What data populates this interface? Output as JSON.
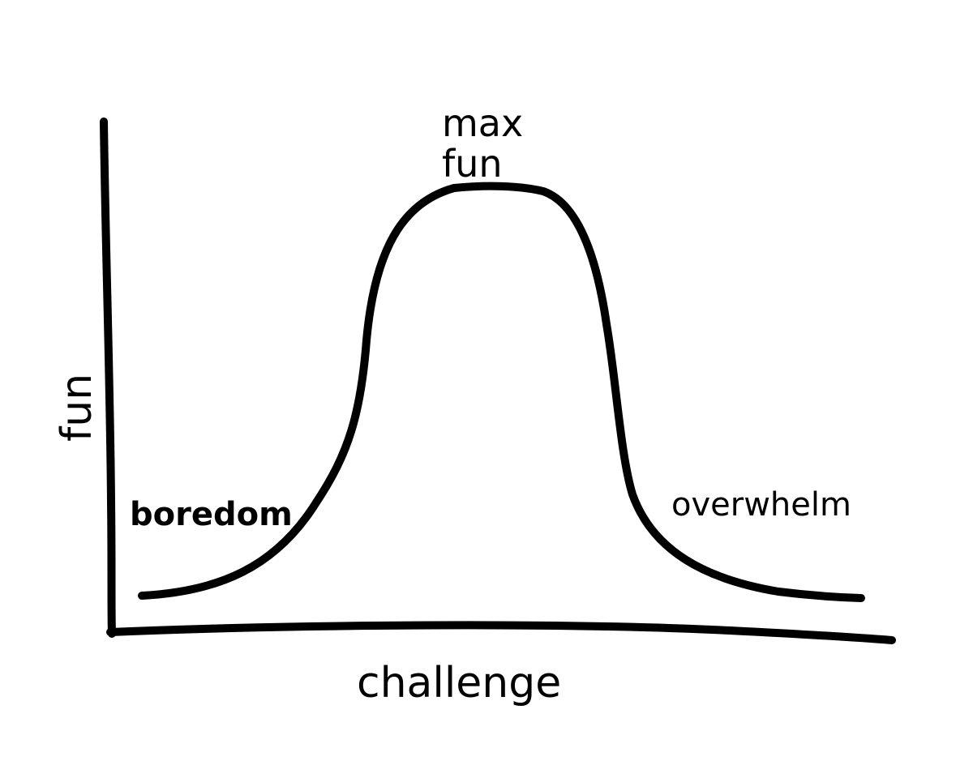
{
  "axes": {
    "x_label": "challenge",
    "y_label": "fun"
  },
  "annotations": {
    "peak_line1": "max",
    "peak_line2": "fun",
    "left_label": "boredom",
    "right_label": "overwhelm"
  },
  "colors": {
    "ink": "#000000",
    "paper": "#ffffff"
  }
}
